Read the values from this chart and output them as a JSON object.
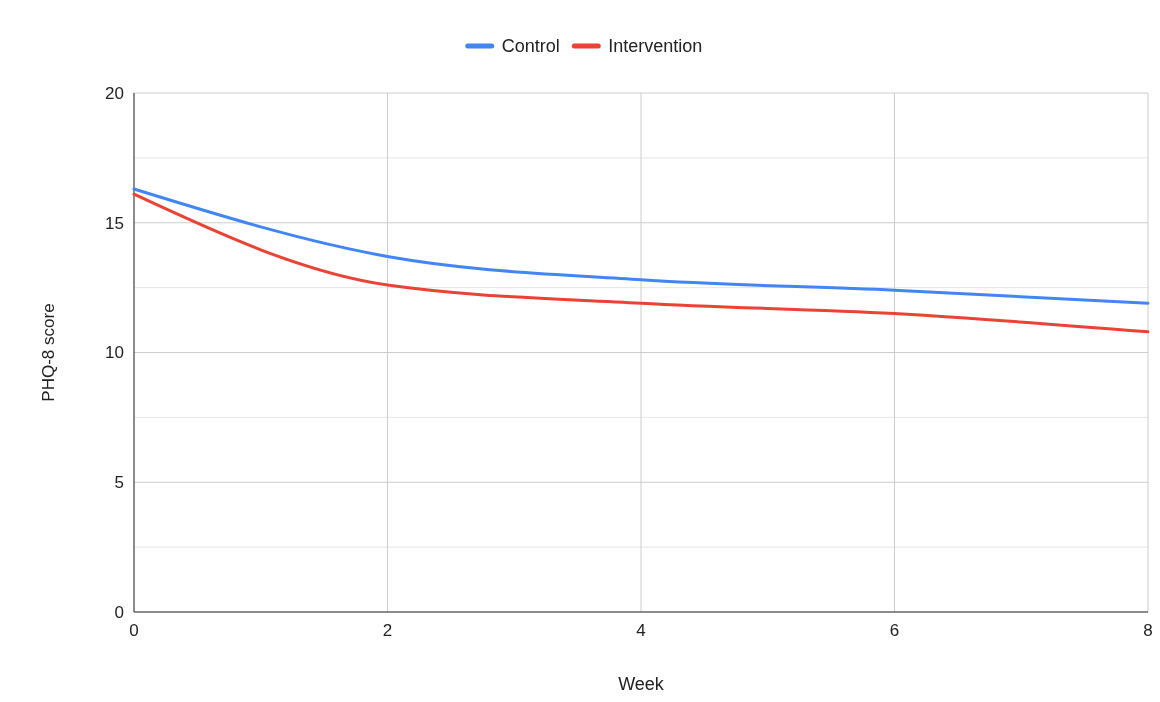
{
  "chart_data": {
    "type": "line",
    "xlabel": "Week",
    "ylabel": "PHQ-8 score",
    "x": [
      0,
      2,
      4,
      6,
      8
    ],
    "series": [
      {
        "name": "Control",
        "color": "#4285f4",
        "values": [
          16.3,
          13.7,
          12.8,
          12.4,
          11.9
        ]
      },
      {
        "name": "Intervention",
        "color": "#ea4335",
        "values": [
          16.1,
          12.6,
          11.9,
          11.5,
          10.8
        ]
      }
    ],
    "xlim": [
      0,
      8
    ],
    "xticks": [
      0,
      2,
      4,
      6,
      8
    ],
    "ylim": [
      0,
      20
    ],
    "yticks": [
      0,
      {
        "value": 2.5,
        "label": null
      },
      5,
      {
        "value": 7.5,
        "label": null
      },
      10,
      {
        "value": 12.5,
        "label": null
      },
      15,
      {
        "value": 17.5,
        "label": null
      },
      20
    ],
    "grid": true,
    "legend": "top",
    "marker": "none",
    "line_style": "solid"
  }
}
